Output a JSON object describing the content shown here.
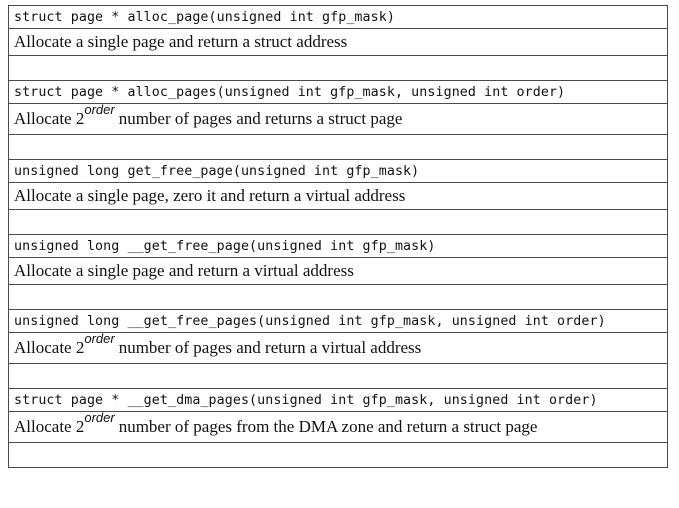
{
  "rows": [
    {
      "signature": "struct page * alloc_page(unsigned int gfp_mask)",
      "description": "Allocate a single page and return a struct address"
    },
    {
      "signature": "struct page * alloc_pages(unsigned int gfp_mask, unsigned int order)",
      "description_pre": "Allocate 2",
      "description_sup": "order",
      "description_post": "number of pages and returns a struct page"
    },
    {
      "signature": "unsigned long get_free_page(unsigned int gfp_mask)",
      "description": "Allocate a single page, zero it and return a virtual address"
    },
    {
      "signature": "unsigned long __get_free_page(unsigned int gfp_mask)",
      "description": "Allocate a single page and return a virtual address"
    },
    {
      "signature": "unsigned long __get_free_pages(unsigned int gfp_mask, unsigned int order)",
      "description_pre": "Allocate 2",
      "description_sup": "order",
      "description_post": "number of pages and return a virtual address"
    },
    {
      "signature": "struct page * __get_dma_pages(unsigned int gfp_mask, unsigned int order)",
      "description_pre": "Allocate 2",
      "description_sup": "order",
      "description_post": "number of pages from the DMA zone and return a struct page"
    }
  ]
}
